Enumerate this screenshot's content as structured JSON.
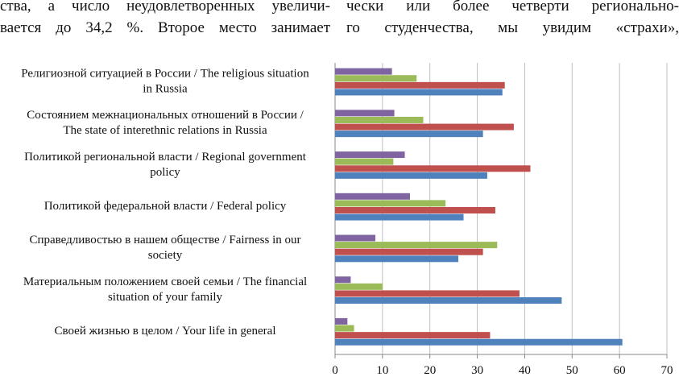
{
  "page_text": {
    "left_lines": [
      "ства, а число неудовлетворенных увеличи-",
      "вается до 34,2 %. Второе место занимает"
    ],
    "right_lines": [
      "чески или более четверти регионально-",
      "го студенчества, мы увидим «страхи»,"
    ]
  },
  "chart_data": {
    "type": "bar",
    "orientation": "horizontal",
    "categories": [
      [
        "Религиозной ситуацией в России / The religious situation",
        "in Russia"
      ],
      [
        "Состоянием межнациональных отношений в России /",
        "The state of interethnic relations in Russia"
      ],
      [
        "Политикой региональной власти / Regional government",
        "policy"
      ],
      [
        "Политикой федеральной власти / Federal policy"
      ],
      [
        "Справедливостью в нашем обществе / Fairness in our",
        "society"
      ],
      [
        "Материальным положением своей семьи / The financial",
        "situation of your family"
      ],
      [
        "Своей жизнью в целом / Your life in general"
      ]
    ],
    "series": [
      {
        "name": "series-purple",
        "color": "#8064A2",
        "values": [
          12,
          12.5,
          14.7,
          15.8,
          8.5,
          3.3,
          2.6
        ]
      },
      {
        "name": "series-green",
        "color": "#9BBB59",
        "values": [
          17.2,
          18.6,
          12.3,
          23.3,
          34.2,
          10,
          4
        ]
      },
      {
        "name": "series-red",
        "color": "#C0504D",
        "values": [
          35.8,
          37.7,
          41.2,
          33.8,
          31.2,
          38.9,
          32.7
        ]
      },
      {
        "name": "series-blue",
        "color": "#4F81BD",
        "values": [
          35.3,
          31.2,
          32.1,
          27.1,
          26,
          47.8,
          60.6
        ]
      }
    ],
    "xlim": [
      0,
      70
    ],
    "xticks": [
      "0",
      "10",
      "20",
      "30",
      "40",
      "50",
      "60",
      "70"
    ],
    "grid": true,
    "title": "",
    "xlabel": "",
    "ylabel": ""
  }
}
